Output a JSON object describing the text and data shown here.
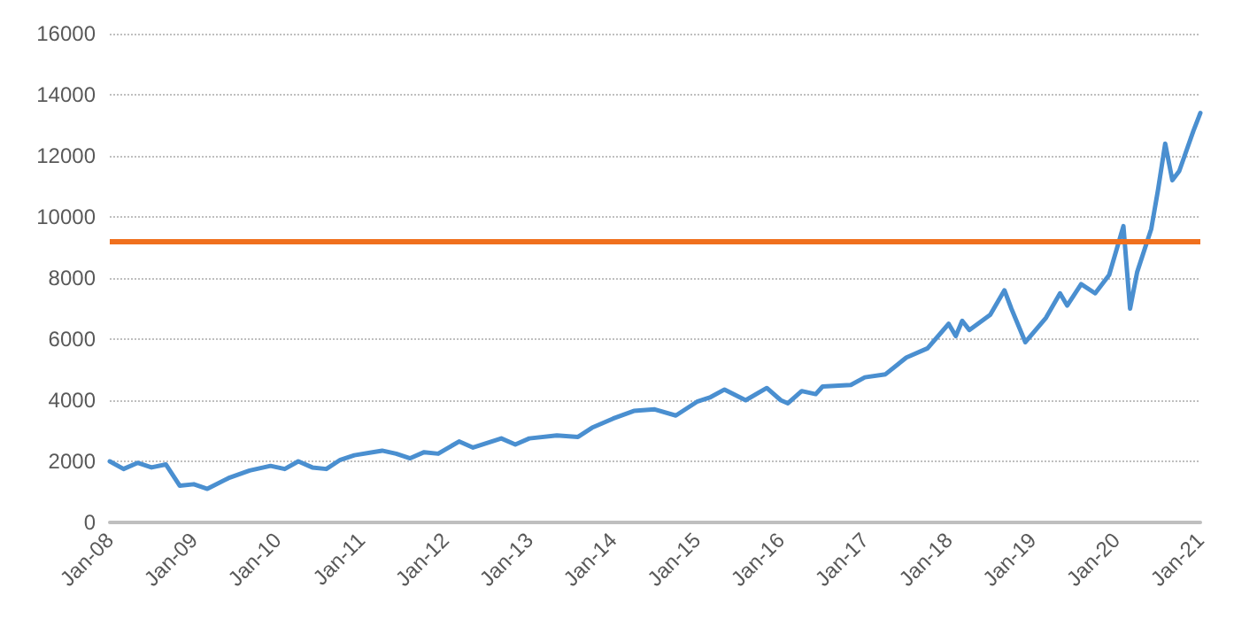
{
  "chart_data": {
    "type": "line",
    "x": [
      "2008-01",
      "2008-03",
      "2008-05",
      "2008-07",
      "2008-09",
      "2008-11",
      "2009-01",
      "2009-03",
      "2009-06",
      "2009-09",
      "2009-12",
      "2010-02",
      "2010-04",
      "2010-06",
      "2010-08",
      "2010-10",
      "2010-12",
      "2011-04",
      "2011-06",
      "2011-08",
      "2011-10",
      "2011-12",
      "2012-03",
      "2012-05",
      "2012-09",
      "2012-11",
      "2013-01",
      "2013-05",
      "2013-08",
      "2013-10",
      "2014-01",
      "2014-04",
      "2014-07",
      "2014-10",
      "2015-01",
      "2015-03",
      "2015-05",
      "2015-08",
      "2015-11",
      "2016-01",
      "2016-02",
      "2016-04",
      "2016-06",
      "2016-07",
      "2016-11",
      "2017-01",
      "2017-04",
      "2017-07",
      "2017-10",
      "2018-01",
      "2018-02",
      "2018-03",
      "2018-04",
      "2018-07",
      "2018-09",
      "2018-10",
      "2018-12",
      "2019-03",
      "2019-05",
      "2019-06",
      "2019-08",
      "2019-10",
      "2019-12",
      "2020-02",
      "2020-03",
      "2020-04",
      "2020-06",
      "2020-07",
      "2020-08",
      "2020-09",
      "2020-10",
      "2020-12",
      "2021-01"
    ],
    "series": [
      {
        "color": "#4a8fd0",
        "values": [
          2000,
          1750,
          1950,
          1800,
          1900,
          1200,
          1250,
          1100,
          1450,
          1700,
          1850,
          1750,
          2000,
          1800,
          1750,
          2050,
          2200,
          2350,
          2250,
          2100,
          2300,
          2250,
          2650,
          2450,
          2750,
          2550,
          2750,
          2850,
          2800,
          3100,
          3400,
          3650,
          3700,
          3500,
          3950,
          4100,
          4350,
          4000,
          4400,
          4000,
          3900,
          4300,
          4200,
          4450,
          4500,
          4750,
          4850,
          5400,
          5700,
          6500,
          6100,
          6600,
          6300,
          6800,
          7600,
          7000,
          5900,
          6700,
          7500,
          7100,
          7800,
          7500,
          8100,
          9700,
          7000,
          8200,
          9600,
          10900,
          12400,
          11200,
          11500,
          12800,
          13400
        ]
      }
    ],
    "xlim": [
      "2008-01",
      "2021-01"
    ],
    "xticks": [
      {
        "value": "2008-01",
        "label": "Jan-08"
      },
      {
        "value": "2009-01",
        "label": "Jan-09"
      },
      {
        "value": "2010-01",
        "label": "Jan-10"
      },
      {
        "value": "2011-01",
        "label": "Jan-11"
      },
      {
        "value": "2012-01",
        "label": "Jan-12"
      },
      {
        "value": "2013-01",
        "label": "Jan-13"
      },
      {
        "value": "2014-01",
        "label": "Jan-14"
      },
      {
        "value": "2015-01",
        "label": "Jan-15"
      },
      {
        "value": "2016-01",
        "label": "Jan-16"
      },
      {
        "value": "2017-01",
        "label": "Jan-17"
      },
      {
        "value": "2018-01",
        "label": "Jan-18"
      },
      {
        "value": "2019-01",
        "label": "Jan-19"
      },
      {
        "value": "2020-01",
        "label": "Jan-20"
      },
      {
        "value": "2021-01",
        "label": "Jan-21"
      }
    ],
    "ylim": [
      0,
      16000
    ],
    "yticks": [
      0,
      2000,
      4000,
      6000,
      8000,
      10000,
      12000,
      14000,
      16000
    ],
    "grid": "y",
    "ref_lines": [
      {
        "axis": "y",
        "value": 9200,
        "color": "#f0701e"
      }
    ]
  }
}
